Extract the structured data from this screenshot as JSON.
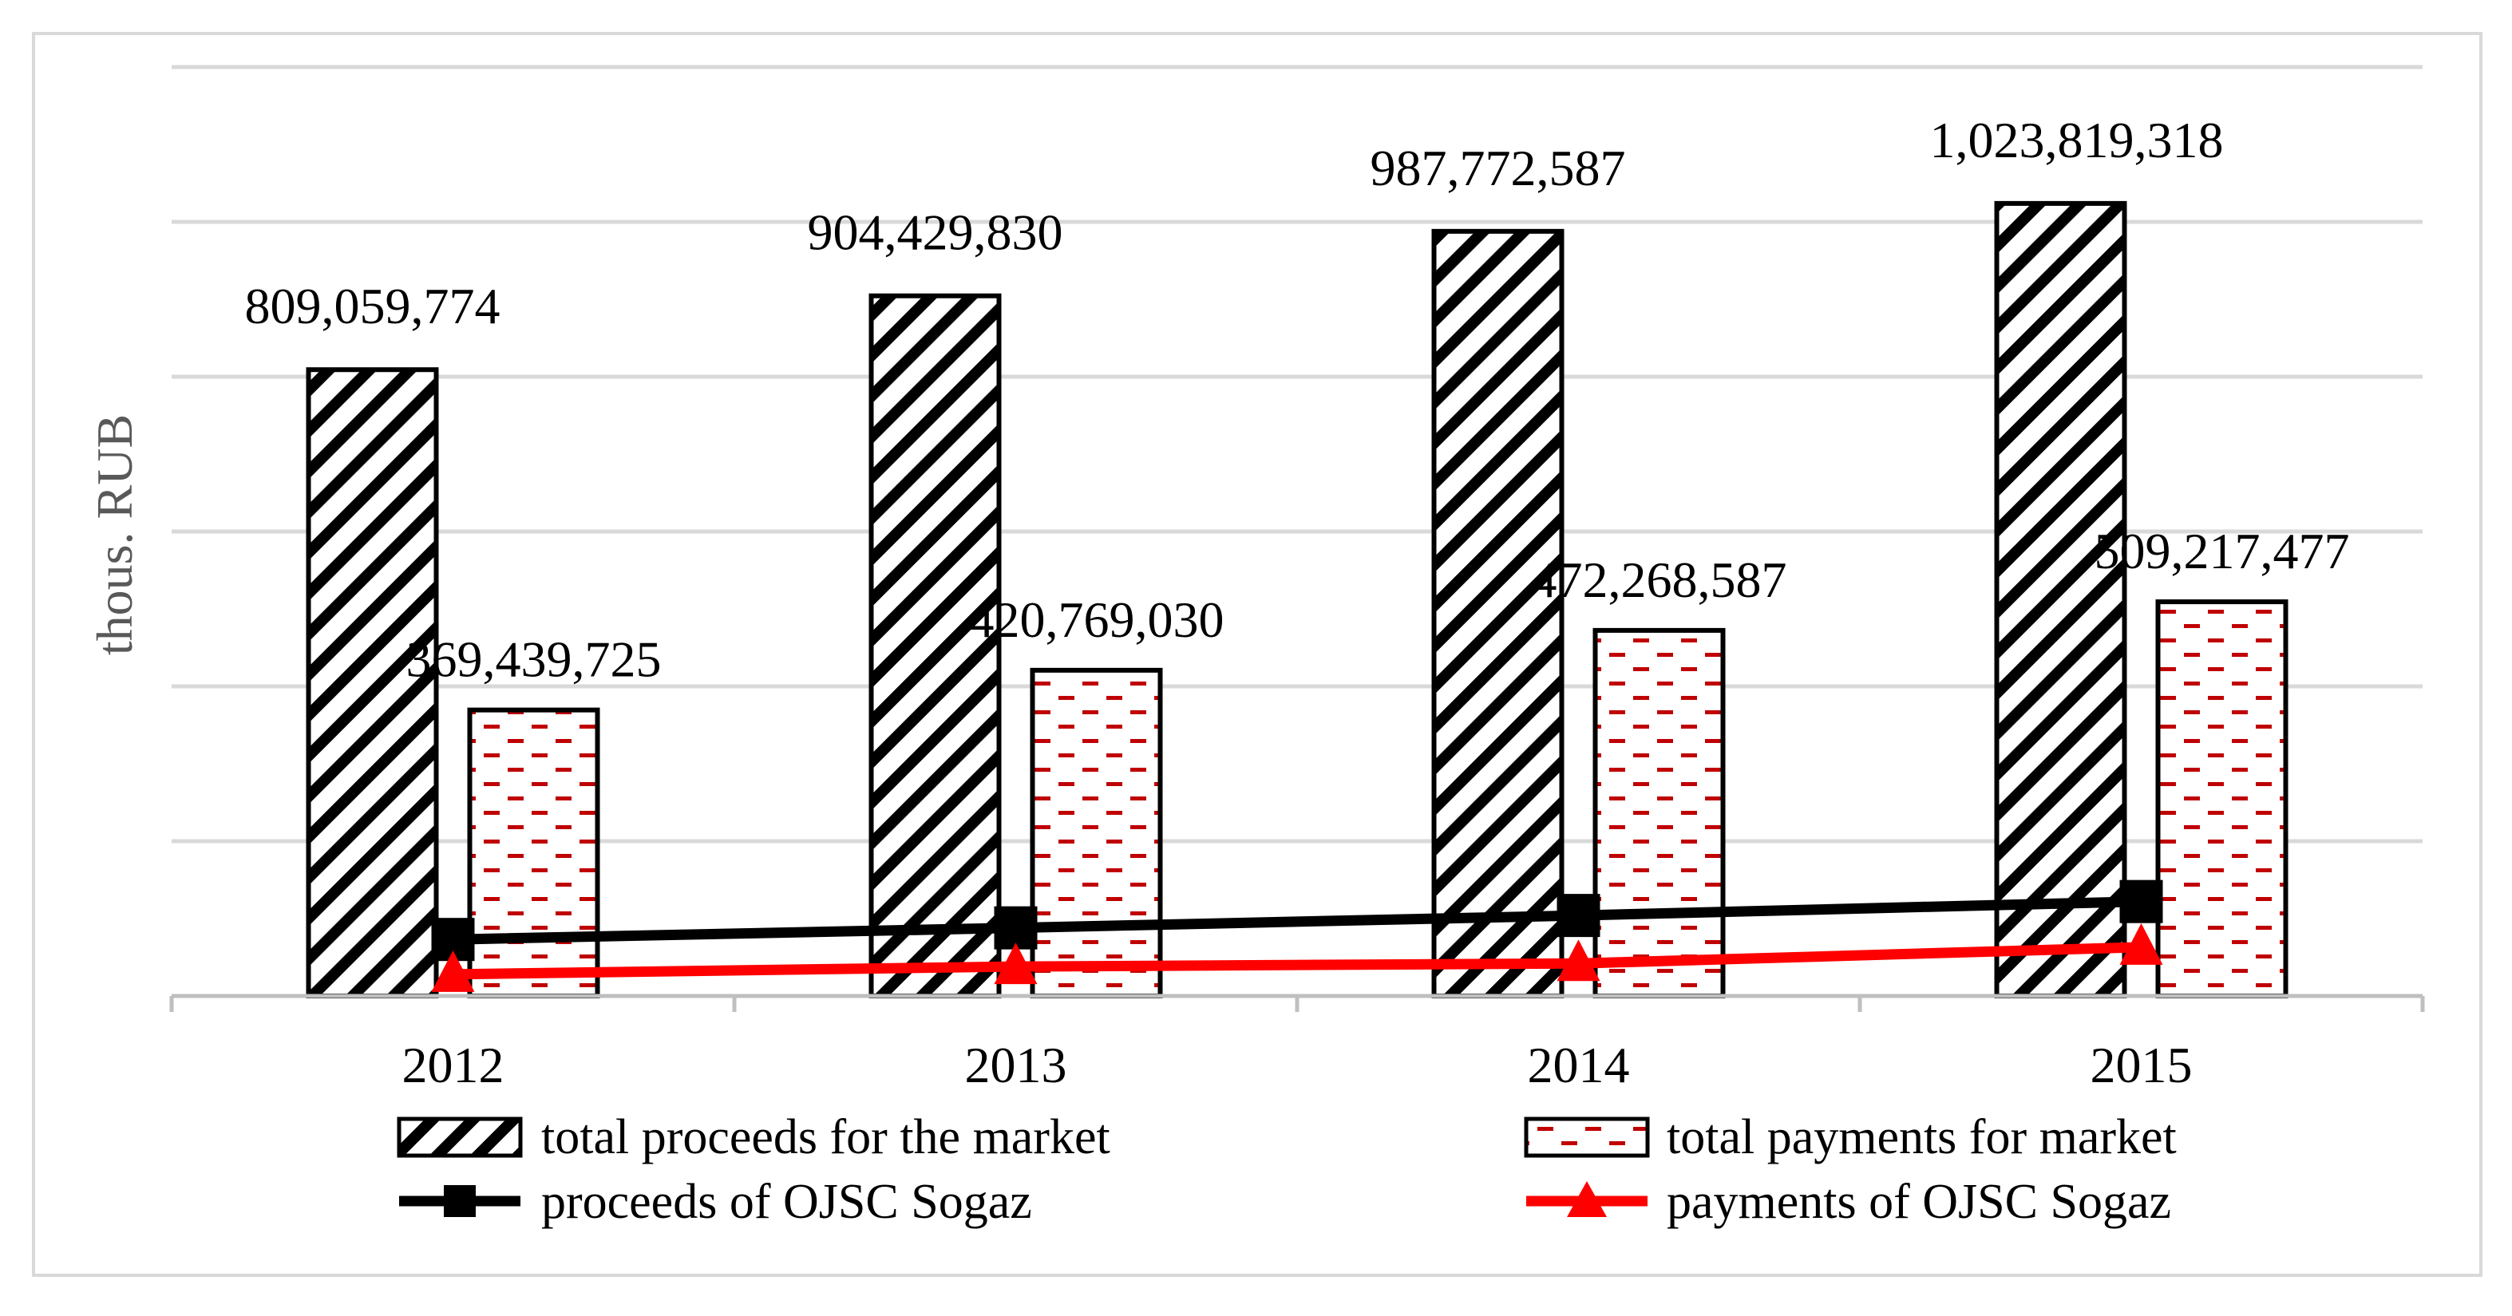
{
  "chart_data": {
    "type": "bar",
    "title": "",
    "xlabel": "",
    "ylabel": "thous. RUB",
    "categories": [
      "2012",
      "2013",
      "2014",
      "2015"
    ],
    "ylim": [
      0,
      1200000000
    ],
    "grid": true,
    "legend_position": "bottom",
    "series": [
      {
        "name": "total proceeds for the market",
        "kind": "bar",
        "pattern": "diagonal-hatch",
        "color": "#000000",
        "values": [
          809059774,
          904429830,
          987772587,
          1023819318
        ],
        "labels": [
          "809,059,774",
          "904,429,830",
          "987,772,587",
          "1,023,819,318"
        ]
      },
      {
        "name": "total payments for market",
        "kind": "bar",
        "pattern": "red-dashes",
        "color": "#c00000",
        "values": [
          369439725,
          420769030,
          472268587,
          509217477
        ],
        "labels": [
          "369,439,725",
          "420,769,030",
          "472,268,587",
          "509,217,477"
        ]
      },
      {
        "name": "proceeds of OJSC Sogaz",
        "kind": "line",
        "marker": "square",
        "color": "#000000",
        "values": [
          73000000,
          88000000,
          104000000,
          122000000
        ]
      },
      {
        "name": "payments of OJSC Sogaz",
        "kind": "line",
        "marker": "triangle",
        "color": "#ff0000",
        "values": [
          28000000,
          38000000,
          42000000,
          63000000
        ]
      }
    ]
  }
}
